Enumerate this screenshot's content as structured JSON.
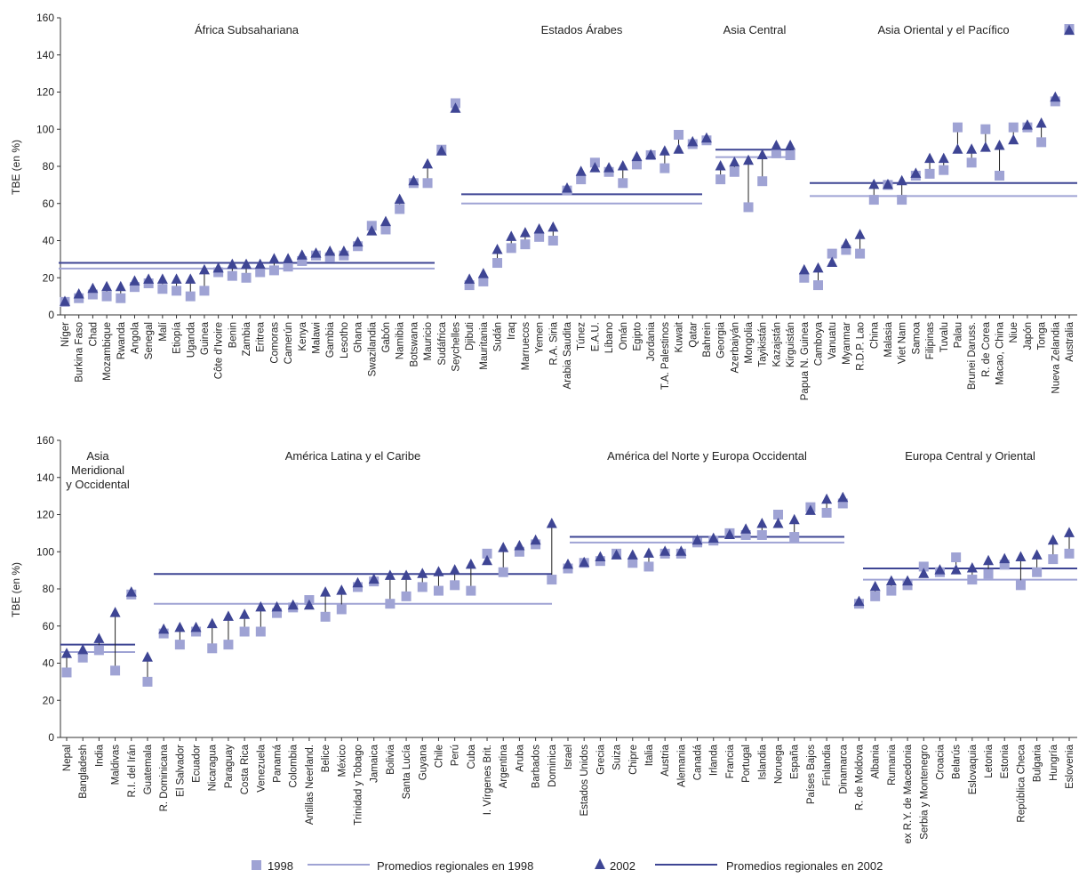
{
  "colors": {
    "series_1998": "#9fa3d4",
    "series_2002": "#3e4594",
    "avg_1998": "#9fa3d4",
    "avg_2002": "#3e4594",
    "connector": "#222222",
    "axis": "#333333"
  },
  "legend": {
    "items": [
      {
        "label": "1998",
        "kind": "square"
      },
      {
        "label": "Promedios regionales en 1998",
        "kind": "line1998"
      },
      {
        "label": "2002",
        "kind": "triangle"
      },
      {
        "label": "Promedios regionales en 2002",
        "kind": "line2002"
      }
    ]
  },
  "chart_data": [
    {
      "type": "scatter",
      "ylabel": "TBE (en %)",
      "ylim": [
        0,
        160
      ],
      "yticks": [
        0,
        20,
        40,
        60,
        80,
        100,
        120,
        140,
        160
      ],
      "regions": [
        {
          "name": "África Subsahariana",
          "avg1998": 25,
          "avg2002": 28,
          "points": [
            {
              "country": "Níger",
              "v1998": 7,
              "v2002": 7
            },
            {
              "country": "Burkina Faso",
              "v1998": 9,
              "v2002": 11
            },
            {
              "country": "Chad",
              "v1998": 11,
              "v2002": 14
            },
            {
              "country": "Mozambique",
              "v1998": 10,
              "v2002": 15
            },
            {
              "country": "Rwanda",
              "v1998": 9,
              "v2002": 15
            },
            {
              "country": "Angola",
              "v1998": 15,
              "v2002": 18
            },
            {
              "country": "Senegal",
              "v1998": 17,
              "v2002": 19
            },
            {
              "country": "Malí",
              "v1998": 14,
              "v2002": 19
            },
            {
              "country": "Etiopía",
              "v1998": 13,
              "v2002": 19
            },
            {
              "country": "Uganda",
              "v1998": 10,
              "v2002": 19
            },
            {
              "country": "Guinea",
              "v1998": 13,
              "v2002": 24
            },
            {
              "country": "Côte d'Ivoire",
              "v1998": 23,
              "v2002": 25
            },
            {
              "country": "Benin",
              "v1998": 21,
              "v2002": 27
            },
            {
              "country": "Zambia",
              "v1998": 20,
              "v2002": 27
            },
            {
              "country": "Eritrea",
              "v1998": 23,
              "v2002": 27
            },
            {
              "country": "Comoras",
              "v1998": 24,
              "v2002": 30
            },
            {
              "country": "Camerún",
              "v1998": 26,
              "v2002": 30
            },
            {
              "country": "Kenya",
              "v1998": 29,
              "v2002": 32
            },
            {
              "country": "Malawi",
              "v1998": 32,
              "v2002": 33
            },
            {
              "country": "Gambia",
              "v1998": 31,
              "v2002": 34
            },
            {
              "country": "Lesotho",
              "v1998": 32,
              "v2002": 34
            },
            {
              "country": "Ghana",
              "v1998": 37,
              "v2002": 39
            },
            {
              "country": "Swazilandia",
              "v1998": 48,
              "v2002": 45
            },
            {
              "country": "Gabón",
              "v1998": 46,
              "v2002": 50
            },
            {
              "country": "Namibia",
              "v1998": 57,
              "v2002": 62
            },
            {
              "country": "Botswana",
              "v1998": 71,
              "v2002": 72
            },
            {
              "country": "Mauricio",
              "v1998": 71,
              "v2002": 81
            },
            {
              "country": "Sudáfrica",
              "v1998": 89,
              "v2002": 88
            },
            {
              "country": "Seychelles",
              "v1998": 114,
              "v2002": 111
            }
          ]
        },
        {
          "name": "Estados Árabes",
          "avg1998": 60,
          "avg2002": 65,
          "points": [
            {
              "country": "Djibuti",
              "v1998": 16,
              "v2002": 19
            },
            {
              "country": "Mauritania",
              "v1998": 18,
              "v2002": 22
            },
            {
              "country": "Sudán",
              "v1998": 28,
              "v2002": 35
            },
            {
              "country": "Iraq",
              "v1998": 36,
              "v2002": 42
            },
            {
              "country": "Marruecos",
              "v1998": 38,
              "v2002": 44
            },
            {
              "country": "Yemen",
              "v1998": 42,
              "v2002": 46
            },
            {
              "country": "R.A. Siria",
              "v1998": 40,
              "v2002": 47
            },
            {
              "country": "Arabia Saudita",
              "v1998": 67,
              "v2002": 68
            },
            {
              "country": "Túnez",
              "v1998": 73,
              "v2002": 77
            },
            {
              "country": "E.A.U.",
              "v1998": 82,
              "v2002": 79
            },
            {
              "country": "Líbano",
              "v1998": 77,
              "v2002": 79
            },
            {
              "country": "Omán",
              "v1998": 71,
              "v2002": 80
            },
            {
              "country": "Egipto",
              "v1998": 81,
              "v2002": 85
            },
            {
              "country": "Jordania",
              "v1998": 86,
              "v2002": 86
            },
            {
              "country": "T.A. Palestinos",
              "v1998": 79,
              "v2002": 88
            },
            {
              "country": "Kuwait",
              "v1998": 97,
              "v2002": 89
            },
            {
              "country": "Qatar",
              "v1998": 92,
              "v2002": 93
            },
            {
              "country": "Bahrein",
              "v1998": 94,
              "v2002": 95
            }
          ]
        },
        {
          "name": "Asia Central",
          "avg1998": 85,
          "avg2002": 89,
          "points": [
            {
              "country": "Georgia",
              "v1998": 73,
              "v2002": 80
            },
            {
              "country": "Azerbaiyán",
              "v1998": 77,
              "v2002": 82
            },
            {
              "country": "Mongolia",
              "v1998": 58,
              "v2002": 83
            },
            {
              "country": "Tayikistán",
              "v1998": 72,
              "v2002": 86
            },
            {
              "country": "Kazajstán",
              "v1998": 87,
              "v2002": 91
            },
            {
              "country": "Kirguistán",
              "v1998": 86,
              "v2002": 91
            }
          ]
        },
        {
          "name": "Asia Oriental y el Pacífico",
          "avg1998": 64,
          "avg2002": 71,
          "points": [
            {
              "country": "Papua N. Guinea",
              "v1998": 20,
              "v2002": 24
            },
            {
              "country": "Camboya",
              "v1998": 16,
              "v2002": 25
            },
            {
              "country": "Vanuatu",
              "v1998": 33,
              "v2002": 28
            },
            {
              "country": "Myanmar",
              "v1998": 35,
              "v2002": 38
            },
            {
              "country": "R.D.P. Lao",
              "v1998": 33,
              "v2002": 43
            },
            {
              "country": "China",
              "v1998": 62,
              "v2002": 70
            },
            {
              "country": "Malasia",
              "v1998": 70,
              "v2002": 70
            },
            {
              "country": "Viet Nam",
              "v1998": 62,
              "v2002": 72
            },
            {
              "country": "Samoa",
              "v1998": 75,
              "v2002": 76
            },
            {
              "country": "Filipinas",
              "v1998": 76,
              "v2002": 84
            },
            {
              "country": "Tuvalu",
              "v1998": 78,
              "v2002": 84
            },
            {
              "country": "Palau",
              "v1998": 101,
              "v2002": 89
            },
            {
              "country": "Brunei Daruss.",
              "v1998": 82,
              "v2002": 89
            },
            {
              "country": "R. de Corea",
              "v1998": 100,
              "v2002": 90
            },
            {
              "country": "Macao, China",
              "v1998": 75,
              "v2002": 91
            },
            {
              "country": "Niue",
              "v1998": 101,
              "v2002": 94
            },
            {
              "country": "Japón",
              "v1998": 101,
              "v2002": 102
            },
            {
              "country": "Tonga",
              "v1998": 93,
              "v2002": 103
            },
            {
              "country": "Nueva Zelandia",
              "v1998": 115,
              "v2002": 117
            },
            {
              "country": "Australia",
              "v1998": 154,
              "v2002": 153
            }
          ]
        }
      ]
    },
    {
      "type": "scatter",
      "ylabel": "TBE (en %)",
      "ylim": [
        0,
        160
      ],
      "yticks": [
        0,
        20,
        40,
        60,
        80,
        100,
        120,
        140,
        160
      ],
      "regions": [
        {
          "name": "Asia Meridional y Occidental",
          "name_lines": [
            "Asia",
            "Meridional",
            "y Occidental"
          ],
          "avg1998": 46,
          "avg2002": 50,
          "points": [
            {
              "country": "Nepal",
              "v1998": 35,
              "v2002": 45
            },
            {
              "country": "Bangladesh",
              "v1998": 43,
              "v2002": 47
            },
            {
              "country": "India",
              "v1998": 47,
              "v2002": 53
            },
            {
              "country": "Maldivas",
              "v1998": 36,
              "v2002": 67
            },
            {
              "country": "R.I. del Irán",
              "v1998": 77,
              "v2002": 78
            }
          ]
        },
        {
          "name": "América Latina y el Caribe",
          "avg1998": 72,
          "avg2002": 88,
          "points": [
            {
              "country": "Guatemala",
              "v1998": 30,
              "v2002": 43
            },
            {
              "country": "R. Dominicana",
              "v1998": 56,
              "v2002": 58
            },
            {
              "country": "El Salvador",
              "v1998": 50,
              "v2002": 59
            },
            {
              "country": "Ecuador",
              "v1998": 57,
              "v2002": 59
            },
            {
              "country": "Nicaragua",
              "v1998": 48,
              "v2002": 61
            },
            {
              "country": "Paraguay",
              "v1998": 50,
              "v2002": 65
            },
            {
              "country": "Costa Rica",
              "v1998": 57,
              "v2002": 66
            },
            {
              "country": "Venezuela",
              "v1998": 57,
              "v2002": 70
            },
            {
              "country": "Panamá",
              "v1998": 67,
              "v2002": 70
            },
            {
              "country": "Colombia",
              "v1998": 70,
              "v2002": 71
            },
            {
              "country": "Antillas Neerland.",
              "v1998": 74,
              "v2002": 71
            },
            {
              "country": "Belice",
              "v1998": 65,
              "v2002": 78
            },
            {
              "country": "México",
              "v1998": 69,
              "v2002": 79
            },
            {
              "country": "Trinidad y Tobago",
              "v1998": 81,
              "v2002": 83
            },
            {
              "country": "Jamaica",
              "v1998": 84,
              "v2002": 85
            },
            {
              "country": "Bolivia",
              "v1998": 72,
              "v2002": 87
            },
            {
              "country": "Santa Lucía",
              "v1998": 76,
              "v2002": 87
            },
            {
              "country": "Guyana",
              "v1998": 81,
              "v2002": 88
            },
            {
              "country": "Chile",
              "v1998": 79,
              "v2002": 89
            },
            {
              "country": "Perú",
              "v1998": 82,
              "v2002": 90
            },
            {
              "country": "Cuba",
              "v1998": 79,
              "v2002": 93
            },
            {
              "country": "I. Vírgenes Brit.",
              "v1998": 99,
              "v2002": 95
            },
            {
              "country": "Argentina",
              "v1998": 89,
              "v2002": 102
            },
            {
              "country": "Aruba",
              "v1998": 100,
              "v2002": 103
            },
            {
              "country": "Barbados",
              "v1998": 104,
              "v2002": 106
            },
            {
              "country": "Dominica",
              "v1998": 85,
              "v2002": 115
            }
          ]
        },
        {
          "name": "América del Norte y Europa Occidental",
          "avg1998": 105,
          "avg2002": 108,
          "points": [
            {
              "country": "Israel",
              "v1998": 91,
              "v2002": 93
            },
            {
              "country": "Estados Unidos",
              "v1998": 94,
              "v2002": 94
            },
            {
              "country": "Grecia",
              "v1998": 95,
              "v2002": 97
            },
            {
              "country": "Suiza",
              "v1998": 99,
              "v2002": 98
            },
            {
              "country": "Chipre",
              "v1998": 94,
              "v2002": 98
            },
            {
              "country": "Italia",
              "v1998": 92,
              "v2002": 99
            },
            {
              "country": "Austria",
              "v1998": 99,
              "v2002": 100
            },
            {
              "country": "Alemania",
              "v1998": 99,
              "v2002": 100
            },
            {
              "country": "Canadá",
              "v1998": 105,
              "v2002": 106
            },
            {
              "country": "Irlanda",
              "v1998": 106,
              "v2002": 107
            },
            {
              "country": "Francia",
              "v1998": 110,
              "v2002": 109
            },
            {
              "country": "Portugal",
              "v1998": 109,
              "v2002": 112
            },
            {
              "country": "Islandia",
              "v1998": 109,
              "v2002": 115
            },
            {
              "country": "Noruega",
              "v1998": 120,
              "v2002": 115
            },
            {
              "country": "España",
              "v1998": 108,
              "v2002": 117
            },
            {
              "country": "Países Bajos",
              "v1998": 124,
              "v2002": 122
            },
            {
              "country": "Finlandia",
              "v1998": 121,
              "v2002": 128
            },
            {
              "country": "Dinamarca",
              "v1998": 126,
              "v2002": 129
            }
          ]
        },
        {
          "name": "Europa Central y Oriental",
          "avg1998": 85,
          "avg2002": 91,
          "points": [
            {
              "country": "R. de Moldova",
              "v1998": 72,
              "v2002": 73
            },
            {
              "country": "Albania",
              "v1998": 76,
              "v2002": 81
            },
            {
              "country": "Rumania",
              "v1998": 79,
              "v2002": 84
            },
            {
              "country": "ex R.Y. de Macedonia",
              "v1998": 82,
              "v2002": 84
            },
            {
              "country": "Serbia y Montenegro",
              "v1998": 92,
              "v2002": 88
            },
            {
              "country": "Croacia",
              "v1998": 89,
              "v2002": 90
            },
            {
              "country": "Belarús",
              "v1998": 97,
              "v2002": 90
            },
            {
              "country": "Eslovaquia",
              "v1998": 85,
              "v2002": 91
            },
            {
              "country": "Letonia",
              "v1998": 88,
              "v2002": 95
            },
            {
              "country": "Estonia",
              "v1998": 93,
              "v2002": 96
            },
            {
              "country": "República Checa",
              "v1998": 82,
              "v2002": 97
            },
            {
              "country": "Bulgaria",
              "v1998": 89,
              "v2002": 98
            },
            {
              "country": "Hungría",
              "v1998": 96,
              "v2002": 106
            },
            {
              "country": "Eslovenia",
              "v1998": 99,
              "v2002": 110
            }
          ]
        }
      ]
    }
  ]
}
